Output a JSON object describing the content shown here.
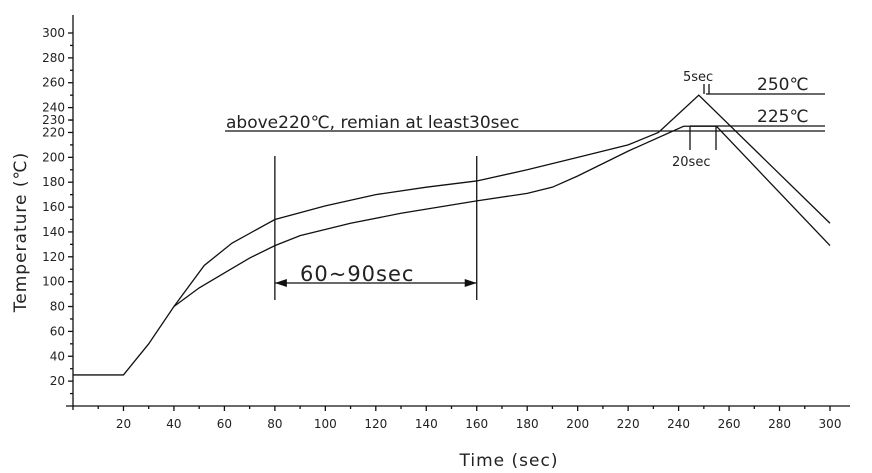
{
  "chart_data": {
    "type": "line",
    "xlabel": "Time (sec)",
    "ylabel": "Temperature (℃)",
    "xlim": [
      0,
      310
    ],
    "ylim": [
      0,
      310
    ],
    "x_ticks": [
      20,
      40,
      60,
      80,
      100,
      120,
      140,
      160,
      180,
      200,
      220,
      240,
      260,
      280,
      300
    ],
    "y_ticks": [
      20,
      40,
      60,
      80,
      100,
      120,
      140,
      160,
      180,
      200,
      220,
      230,
      240,
      260,
      280,
      300
    ],
    "series": [
      {
        "x": [
          0,
          20,
          30,
          40,
          52,
          63,
          80,
          100,
          120,
          140,
          160,
          180,
          200,
          220,
          232,
          248,
          300
        ],
        "y": [
          25,
          25,
          50,
          80,
          113,
          131,
          150,
          161,
          170,
          176,
          181,
          190,
          200,
          210,
          220,
          250,
          147
        ]
      },
      {
        "x": [
          40,
          50,
          60,
          70,
          80,
          90,
          110,
          130,
          160,
          180,
          190,
          200,
          220,
          242,
          255,
          300
        ],
        "y": [
          80,
          95,
          107,
          119,
          129,
          137,
          147,
          155,
          165,
          171,
          176,
          185,
          205,
          225,
          225,
          129
        ]
      }
    ],
    "annotations": {
      "window": "60~90sec",
      "above": "above220℃, remian at least30sec",
      "peak_time": "5sec",
      "peak_temp": "250℃",
      "plateau_temp": "225℃",
      "plateau_time": "20sec"
    }
  }
}
